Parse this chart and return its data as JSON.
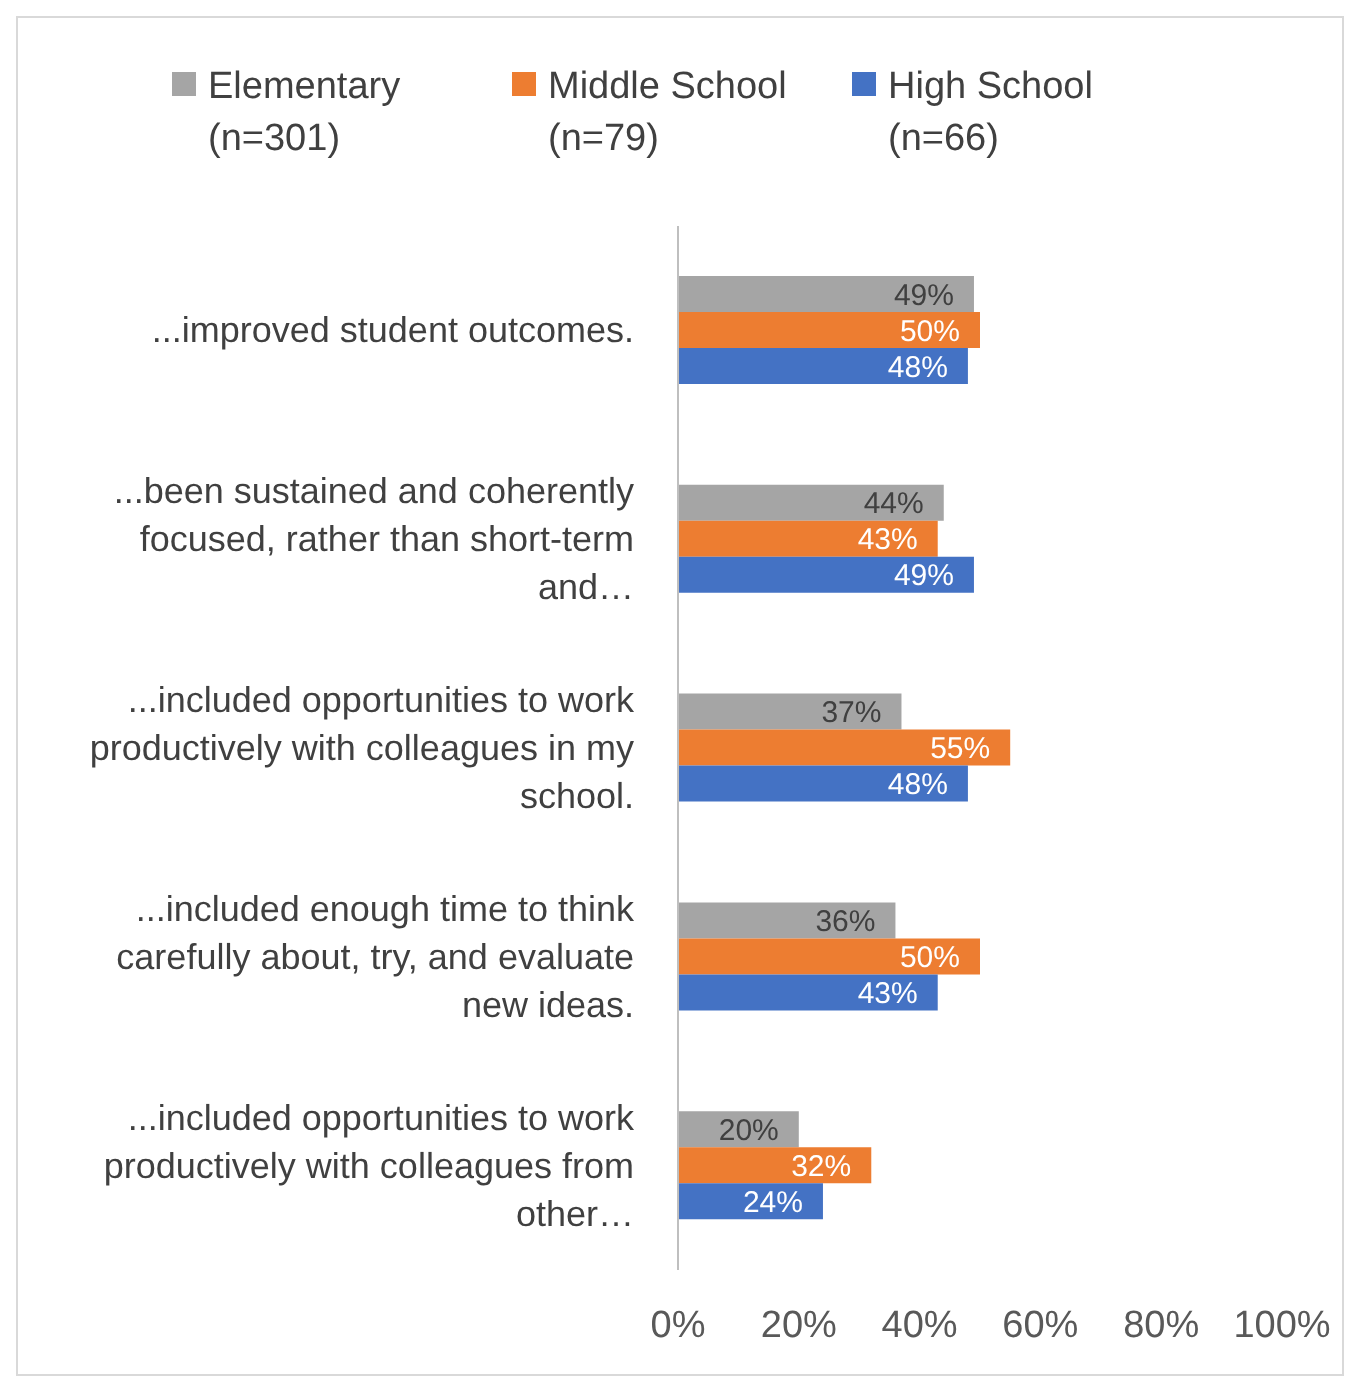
{
  "chart_data": {
    "type": "bar",
    "orientation": "horizontal",
    "categories": [
      "...improved student outcomes.",
      "...been sustained and coherently focused, rather than short-term and…",
      "...included opportunities to work productively with colleagues in my school.",
      "...included enough time to think carefully about, try, and evaluate new ideas.",
      "...included opportunities to work productively with colleagues from other…"
    ],
    "series": [
      {
        "name": "Elementary (n=301)",
        "color": "#a5a5a5",
        "values": [
          49,
          44,
          37,
          36,
          20
        ],
        "value_labels": [
          "49%",
          "44%",
          "37%",
          "36%",
          "20%"
        ]
      },
      {
        "name": "Middle School (n=79)",
        "color": "#ed7d31",
        "values": [
          50,
          43,
          55,
          50,
          32
        ],
        "value_labels": [
          "50%",
          "43%",
          "55%",
          "50%",
          "32%"
        ]
      },
      {
        "name": "High School (n=66)",
        "color": "#4472c4",
        "values": [
          48,
          49,
          48,
          43,
          24
        ],
        "value_labels": [
          "48%",
          "49%",
          "48%",
          "43%",
          "24%"
        ]
      }
    ],
    "xlim": [
      0,
      100
    ],
    "xticks": [
      {
        "value": 0,
        "label": "0%"
      },
      {
        "value": 20,
        "label": "20%"
      },
      {
        "value": 40,
        "label": "40%"
      },
      {
        "value": 60,
        "label": "60%"
      },
      {
        "value": 80,
        "label": "80%"
      },
      {
        "value": 100,
        "label": "100%"
      }
    ],
    "legend": "top",
    "grid": false
  }
}
